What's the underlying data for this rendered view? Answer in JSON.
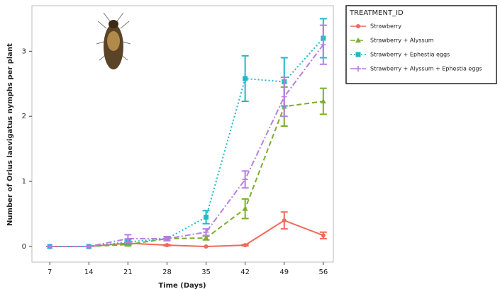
{
  "chart_data": {
    "type": "line",
    "x_label": "Time (Days)",
    "y_label": "Number of Orius laevigatus nymphs per plant",
    "x": [
      7,
      14,
      21,
      28,
      35,
      42,
      49,
      56
    ],
    "xlim": [
      3.8,
      57.8
    ],
    "xticks": [
      7,
      14,
      21,
      28,
      35,
      42,
      49,
      56
    ],
    "ylim": [
      -0.24,
      3.7
    ],
    "yticks": [
      0,
      1,
      2,
      3
    ],
    "legend_title": "TREATMENT_ID",
    "legend_position": "right",
    "series": [
      {
        "name": "Strawberry",
        "color": "#f0695a",
        "dash": "solid",
        "marker": "circle",
        "values": [
          0,
          0,
          0.05,
          0.02,
          0,
          0.02,
          0.4,
          0.17
        ],
        "errors": [
          0,
          0,
          0.02,
          0.01,
          0,
          0.01,
          0.13,
          0.05
        ]
      },
      {
        "name": "Strawberry + Alyssum",
        "color": "#7cae2e",
        "dash": "dashed",
        "marker": "triangle",
        "values": [
          0,
          0,
          0.03,
          0.12,
          0.13,
          0.58,
          2.15,
          2.23
        ],
        "errors": [
          0,
          0,
          0.02,
          0.03,
          0.03,
          0.15,
          0.3,
          0.2
        ]
      },
      {
        "name": "Strawberry + Ephestia eggs",
        "color": "#1fb8c8",
        "dash": "dotted",
        "marker": "square",
        "values": [
          0,
          0,
          0.07,
          0.12,
          0.45,
          2.58,
          2.53,
          3.2
        ],
        "errors": [
          0,
          0,
          0.03,
          0.03,
          0.1,
          0.35,
          0.37,
          0.3
        ]
      },
      {
        "name": "Strawberry + Alyssum + Ephestia eggs",
        "color": "#b77ee0",
        "dash": "dashdot",
        "marker": "plus",
        "values": [
          0,
          0,
          0.12,
          0.12,
          0.22,
          1.03,
          2.3,
          3.1
        ],
        "errors": [
          0,
          0,
          0.06,
          0.03,
          0.05,
          0.13,
          0.3,
          0.3
        ]
      }
    ]
  }
}
